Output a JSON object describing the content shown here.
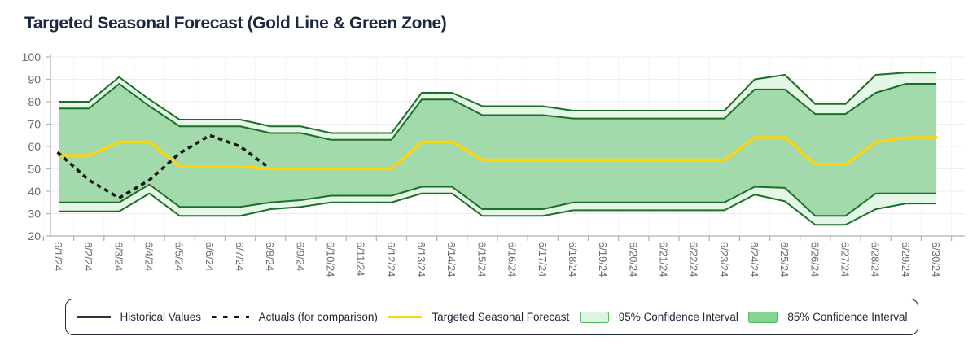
{
  "title": "Targeted Seasonal Forecast (Gold Line & Green Zone)",
  "colors": {
    "title_text": "#1c2740",
    "axis_text": "#6b6b6b",
    "axis_line": "#b0b0b0",
    "grid_h": "#ededed",
    "grid_v": "#f5f5f5",
    "band_edge": "#1c6f26",
    "ci95_fill": "#e4f6e5",
    "ci85_fill": "#a3daab",
    "forecast": "#ffd40a",
    "actuals": "#161616",
    "historical_legend": "#333333",
    "legend_box_border": "#53b95f",
    "legend_ci95_fill": "#dff4e0",
    "legend_ci85_fill": "#84d592"
  },
  "legend": {
    "items": [
      {
        "label": "Historical Values",
        "swatch": "line",
        "color": "#333333"
      },
      {
        "label": "Actuals (for comparison)",
        "swatch": "dash",
        "color": "#161616"
      },
      {
        "label": "Targeted Seasonal Forecast",
        "swatch": "line",
        "color": "#ffd40a"
      },
      {
        "label": "95% Confidence Interval",
        "swatch": "box",
        "fill": "#dff4e0",
        "border": "#53b95f"
      },
      {
        "label": "85% Confidence Interval",
        "swatch": "box",
        "fill": "#84d592",
        "border": "#53b95f"
      }
    ]
  },
  "chart_data": {
    "type": "area",
    "title": "Targeted Seasonal Forecast (Gold Line & Green Zone)",
    "x": [
      "6/1/24",
      "6/2/24",
      "6/3/24",
      "6/4/24",
      "6/5/24",
      "6/6/24",
      "6/7/24",
      "6/8/24",
      "6/9/24",
      "6/10/24",
      "6/11/24",
      "6/12/24",
      "6/13/24",
      "6/14/24",
      "6/15/24",
      "6/16/24",
      "6/17/24",
      "6/18/24",
      "6/19/24",
      "6/20/24",
      "6/21/24",
      "6/22/24",
      "6/23/24",
      "6/24/24",
      "6/25/24",
      "6/26/24",
      "6/27/24",
      "6/28/24",
      "6/29/24",
      "6/30/24"
    ],
    "ylim": [
      20,
      100
    ],
    "yticks": [
      100,
      90,
      80,
      70,
      60,
      50,
      40,
      30,
      20
    ],
    "grid": true,
    "legend_position": "bottom",
    "bands": [
      {
        "name": "95% Confidence Interval",
        "upper": [
          80,
          80,
          91,
          81,
          72,
          72,
          72,
          69,
          69,
          66,
          66,
          66,
          84,
          84,
          78,
          78,
          78,
          76,
          76,
          76,
          76,
          76,
          76,
          90,
          92,
          79,
          79,
          92,
          93,
          93
        ],
        "lower": [
          31,
          31,
          31,
          39,
          29,
          29,
          29,
          32,
          33,
          35,
          35,
          35,
          39,
          39,
          29,
          29,
          29,
          31.5,
          31.5,
          31.5,
          31.5,
          31.5,
          31.5,
          38.5,
          35.5,
          25,
          25,
          32,
          34.5,
          34.5
        ]
      },
      {
        "name": "85% Confidence Interval",
        "upper": [
          77,
          77,
          88,
          78,
          69,
          69,
          69,
          66,
          66,
          63,
          63,
          63,
          81,
          81,
          74,
          74,
          74,
          72.5,
          72.5,
          72.5,
          72.5,
          72.5,
          72.5,
          85.5,
          85.5,
          74.5,
          74.5,
          84,
          88,
          88
        ],
        "lower": [
          35,
          35,
          35,
          43,
          33,
          33,
          33,
          35,
          36,
          38,
          38,
          38,
          42,
          42,
          32,
          32,
          32,
          35,
          35,
          35,
          35,
          35,
          35,
          42,
          41.5,
          29,
          29,
          39,
          39,
          39
        ]
      }
    ],
    "series": [
      {
        "name": "Targeted Seasonal Forecast",
        "style": "solid",
        "values": [
          56,
          56,
          62,
          62,
          51,
          51,
          51,
          50,
          50,
          50,
          50,
          50,
          62,
          62,
          54,
          54,
          54,
          54,
          54,
          54,
          54,
          54,
          54,
          64,
          64,
          52,
          52,
          62,
          64,
          64
        ]
      },
      {
        "name": "Actuals (for comparison)",
        "style": "dashed",
        "values": [
          57,
          45,
          37,
          45,
          57,
          65,
          60,
          50
        ]
      },
      {
        "name": "Historical Values",
        "style": "solid",
        "note_rendered_as": "dark outline of confidence bands"
      }
    ]
  }
}
